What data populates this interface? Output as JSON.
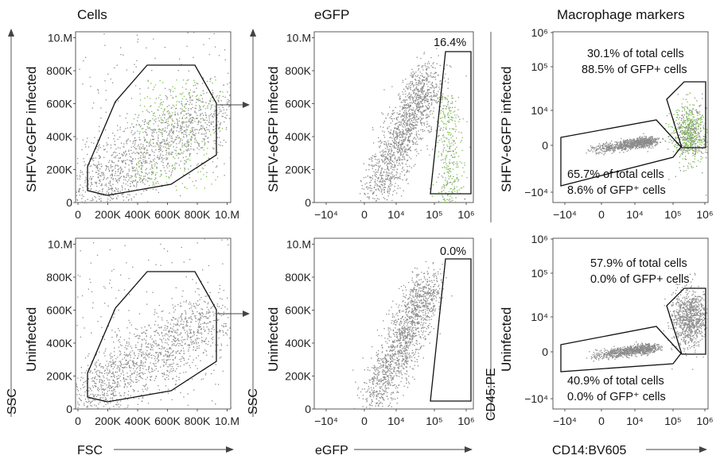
{
  "column_titles": [
    "Cells",
    "eGFP",
    "Macrophage markers"
  ],
  "row_labels": [
    "SHFV-eGFP infected",
    "Uninfected"
  ],
  "axis_labels": {
    "col1_x": "FSC",
    "col1_y": "SSC",
    "col2_x": "eGFP",
    "col2_y": "SSC",
    "col3_x": "CD14:BV605",
    "col3_y": "CD45:PE"
  },
  "ticks": {
    "linear_y": [
      "0",
      "200K",
      "400K",
      "600K",
      "800K",
      "10.M"
    ],
    "linear_x": [
      "0",
      "200K",
      "400K",
      "600K",
      "800K",
      "10.M"
    ],
    "log_x": [
      "−10⁴",
      "0",
      "10⁴",
      "10⁵",
      "10⁶"
    ],
    "log_y": [
      "−10⁴",
      "0",
      "10⁴",
      "10⁵",
      "10⁶"
    ]
  },
  "annotations": {
    "infected_gfp_gate": "16.4%",
    "uninfected_gfp_gate": "0.0%",
    "infected_upper_line1": "30.1% of total cells",
    "infected_upper_line2": "88.5% of GFP+ cells",
    "infected_lower_line1": "65.7% of total cells",
    "infected_lower_line2": "8.6% of GFP⁺ cells",
    "uninfected_upper_line1": "57.9% of total cells",
    "uninfected_upper_line2": "0.0% of GFP+ cells",
    "uninfected_lower_line1": "40.9% of total cells",
    "uninfected_lower_line2": "0.0% of GFP⁺ cells"
  },
  "colors": {
    "events": "#8c8c8c",
    "gfp_events": "#7cc24a",
    "gate": "#111111"
  },
  "chart_data": [
    {
      "type": "scatter",
      "panel": "SHFV-eGFP infected / Cells",
      "title": "Cells",
      "xlabel": "FSC",
      "ylabel": "SSC",
      "xlim": [
        0,
        1000000
      ],
      "ylim": [
        0,
        1000000
      ],
      "gate": [
        [
          30000,
          200000
        ],
        [
          240000,
          600000
        ],
        [
          480000,
          830000
        ],
        [
          820000,
          830000
        ],
        [
          940000,
          600000
        ],
        [
          940000,
          270000
        ],
        [
          630000,
          120000
        ],
        [
          250000,
          40000
        ],
        [
          100000,
          80000
        ]
      ],
      "series": [
        {
          "name": "eGFP+",
          "x_range": [
            250000,
            900000
          ],
          "y_range": [
            100000,
            800000
          ]
        }
      ]
    },
    {
      "type": "scatter",
      "panel": "SHFV-eGFP infected / eGFP",
      "title": "eGFP",
      "xlabel": "eGFP",
      "ylabel": "SSC",
      "ylim": [
        0,
        1000000
      ],
      "x_scale": "biexponential",
      "gate_label": "16.4%",
      "gate": [
        [
          150000,
          900000
        ],
        [
          1000000,
          900000
        ],
        [
          1000000,
          50000
        ],
        [
          80000,
          50000
        ]
      ],
      "gate_frequency_percent": 16.4
    },
    {
      "type": "scatter",
      "panel": "SHFV-eGFP infected / Macrophage markers",
      "title": "Macrophage markers",
      "xlabel": "CD14:BV605",
      "ylabel": "CD45:PE",
      "x_scale": "biexponential",
      "y_scale": "biexponential",
      "gates": [
        {
          "label": [
            "30.1% of total cells",
            "88.5% of GFP+ cells"
          ],
          "percent_total": 30.1,
          "percent_gfp": 88.5
        },
        {
          "label": [
            "65.7% of total cells",
            "8.6% of GFP⁺ cells"
          ],
          "percent_total": 65.7,
          "percent_gfp": 8.6
        }
      ]
    },
    {
      "type": "scatter",
      "panel": "Uninfected / Cells",
      "xlabel": "FSC",
      "ylabel": "SSC",
      "xlim": [
        0,
        1000000
      ],
      "ylim": [
        0,
        1000000
      ],
      "gate": [
        [
          30000,
          200000
        ],
        [
          240000,
          600000
        ],
        [
          480000,
          830000
        ],
        [
          820000,
          830000
        ],
        [
          940000,
          600000
        ],
        [
          940000,
          270000
        ],
        [
          630000,
          120000
        ],
        [
          250000,
          40000
        ],
        [
          100000,
          80000
        ]
      ]
    },
    {
      "type": "scatter",
      "panel": "Uninfected / eGFP",
      "xlabel": "eGFP",
      "ylabel": "SSC",
      "ylim": [
        0,
        1000000
      ],
      "x_scale": "biexponential",
      "gate_label": "0.0%",
      "gate_frequency_percent": 0.0
    },
    {
      "type": "scatter",
      "panel": "Uninfected / Macrophage markers",
      "xlabel": "CD14:BV605",
      "ylabel": "CD45:PE",
      "x_scale": "biexponential",
      "y_scale": "biexponential",
      "gates": [
        {
          "label": [
            "57.9% of total cells",
            "0.0% of GFP+ cells"
          ],
          "percent_total": 57.9,
          "percent_gfp": 0.0
        },
        {
          "label": [
            "40.9% of total cells",
            "0.0% of GFP⁺ cells"
          ],
          "percent_total": 40.9,
          "percent_gfp": 0.0
        }
      ]
    }
  ]
}
